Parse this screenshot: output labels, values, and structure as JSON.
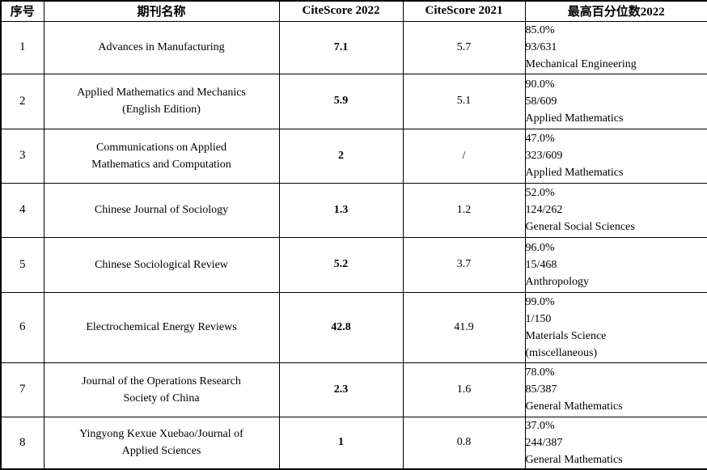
{
  "table": {
    "headers": [
      "序号",
      "期刊名称",
      "CiteScore 2022",
      "CiteScore 2021",
      "最高百分位数2022"
    ],
    "rows": [
      {
        "no": "1",
        "journal_lines": [
          "Advances in Manufacturing"
        ],
        "citescore_2022": "7.1",
        "citescore_2021": "5.7",
        "percentile_lines": [
          "85.0%",
          "93/631",
          "Mechanical Engineering"
        ]
      },
      {
        "no": "2",
        "journal_lines": [
          "Applied Mathematics and Mechanics",
          "(English Edition)"
        ],
        "citescore_2022": "5.9",
        "citescore_2021": "5.1",
        "percentile_lines": [
          "90.0%",
          "58/609",
          "Applied Mathematics"
        ]
      },
      {
        "no": "3",
        "journal_lines": [
          "Communications on Applied",
          "Mathematics and Computation"
        ],
        "citescore_2022": "2",
        "citescore_2021": "/",
        "percentile_lines": [
          "47.0%",
          "323/609",
          "Applied Mathematics"
        ]
      },
      {
        "no": "4",
        "journal_lines": [
          "Chinese Journal of Sociology"
        ],
        "citescore_2022": "1.3",
        "citescore_2021": "1.2",
        "percentile_lines": [
          "52.0%",
          "124/262",
          "General Social Sciences"
        ]
      },
      {
        "no": "5",
        "journal_lines": [
          "Chinese Sociological Review"
        ],
        "citescore_2022": "5.2",
        "citescore_2021": "3.7",
        "percentile_lines": [
          "96.0%",
          "15/468",
          "Anthropology"
        ]
      },
      {
        "no": "6",
        "journal_lines": [
          "Electrochemical Energy Reviews"
        ],
        "citescore_2022": "42.8",
        "citescore_2021": "41.9",
        "percentile_lines": [
          "99.0%",
          "1/150",
          "Materials Science",
          "(miscellaneous)"
        ]
      },
      {
        "no": "7",
        "journal_lines": [
          "Journal of the Operations Research",
          "Society of China"
        ],
        "citescore_2022": "2.3",
        "citescore_2021": "1.6",
        "percentile_lines": [
          "78.0%",
          "85/387",
          "General Mathematics"
        ]
      },
      {
        "no": "8",
        "journal_lines": [
          "Yingyong Kexue Xuebao/Journal of",
          "Applied Sciences"
        ],
        "citescore_2022": "1",
        "citescore_2021": "0.8",
        "percentile_lines": [
          "37.0%",
          "244/387",
          "General Mathematics"
        ]
      }
    ]
  }
}
